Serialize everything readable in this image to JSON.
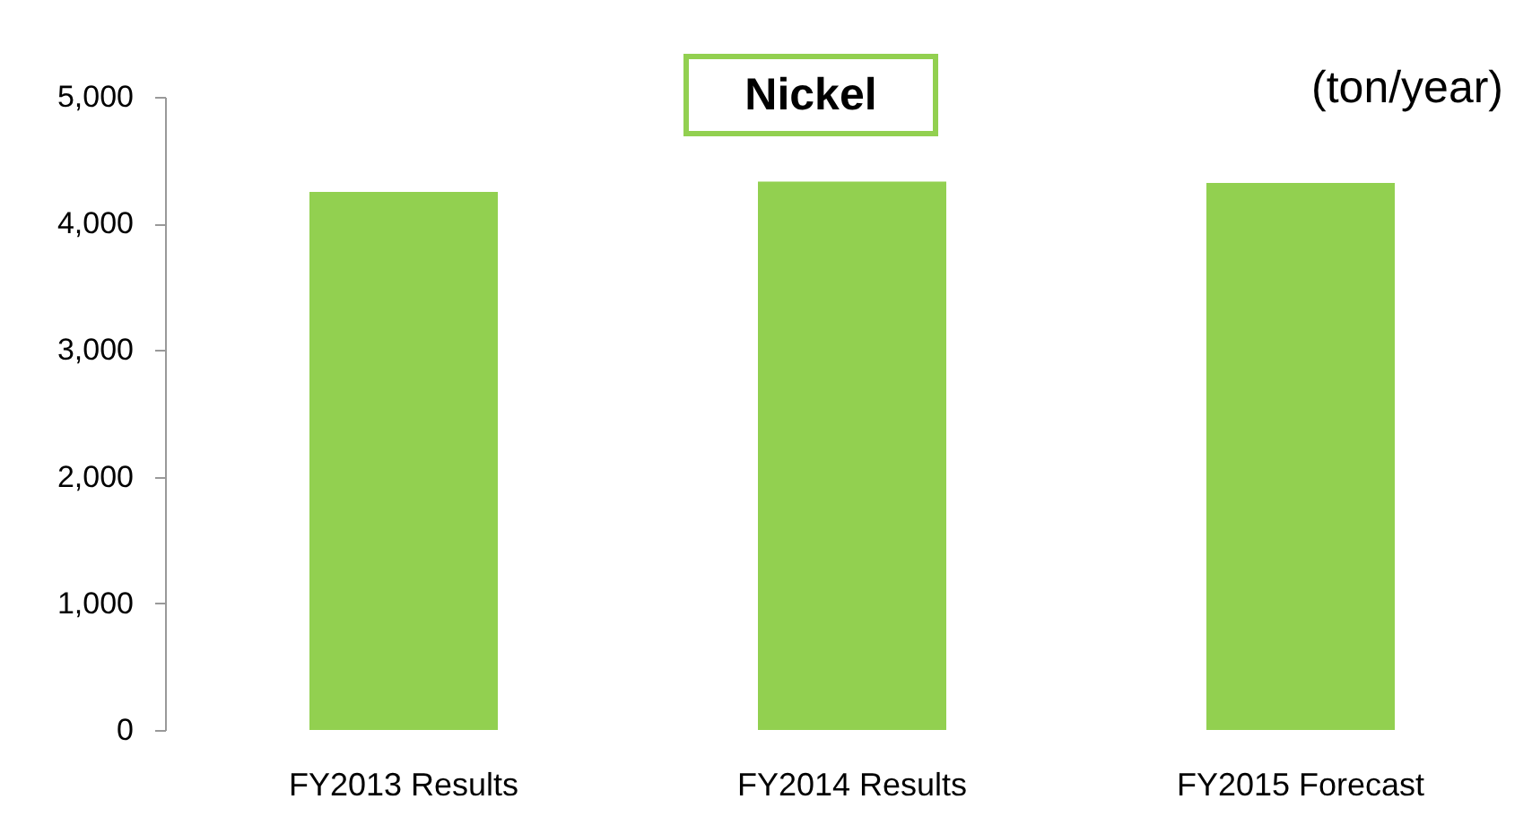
{
  "chart_data": {
    "type": "bar",
    "title": "Nickel",
    "annotations": [
      "(ton/year)"
    ],
    "categories": [
      "FY2013 Results",
      "FY2014 Results",
      "FY2015 Forecast"
    ],
    "values": [
      4250,
      4330,
      4320
    ],
    "color": "#92d050",
    "ylim": [
      0,
      5000
    ],
    "yticks": [
      0,
      {
        "value": 1000,
        "label": "1,000"
      },
      {
        "value": 2000,
        "label": "2,000"
      },
      {
        "value": 3000,
        "label": "3,000"
      },
      {
        "value": 4000,
        "label": "4,000"
      },
      {
        "value": 5000,
        "label": "5,000"
      }
    ],
    "grid": false,
    "legend": false
  }
}
